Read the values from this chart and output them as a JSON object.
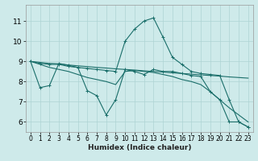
{
  "xlabel": "Humidex (Indice chaleur)",
  "bg_color": "#ceeaea",
  "line_color": "#1a6e6a",
  "grid_color": "#aed4d4",
  "xlim": [
    -0.5,
    23.5
  ],
  "ylim": [
    5.5,
    11.8
  ],
  "xticks": [
    0,
    1,
    2,
    3,
    4,
    5,
    6,
    7,
    8,
    9,
    10,
    11,
    12,
    13,
    14,
    15,
    16,
    17,
    18,
    19,
    20,
    21,
    22,
    23
  ],
  "yticks": [
    6,
    7,
    8,
    9,
    10,
    11
  ],
  "lines": [
    {
      "x": [
        0,
        1,
        2,
        3,
        4,
        5,
        6,
        7,
        8,
        9,
        10,
        11,
        12,
        13,
        14,
        15,
        16,
        17,
        18,
        19,
        20,
        21,
        22,
        23
      ],
      "y": [
        9.0,
        7.7,
        7.8,
        8.9,
        8.8,
        8.7,
        7.55,
        7.3,
        6.35,
        7.1,
        8.6,
        8.5,
        8.35,
        8.6,
        8.5,
        8.5,
        8.4,
        8.3,
        8.25,
        7.5,
        7.1,
        6.0,
        6.0,
        5.75
      ],
      "marker": "+"
    },
    {
      "x": [
        0,
        1,
        2,
        3,
        4,
        5,
        6,
        7,
        8,
        9,
        10,
        11,
        12,
        13,
        14,
        15,
        16,
        17,
        18,
        19,
        20,
        21,
        22,
        23
      ],
      "y": [
        9.0,
        8.9,
        8.85,
        8.85,
        8.75,
        8.7,
        8.65,
        8.6,
        8.55,
        8.5,
        10.0,
        10.6,
        11.0,
        11.15,
        10.2,
        9.2,
        8.85,
        8.5,
        8.4,
        8.35,
        8.3,
        7.1,
        6.0,
        5.75
      ],
      "marker": "+"
    },
    {
      "x": [
        0,
        1,
        2,
        3,
        4,
        5,
        6,
        7,
        8,
        9,
        10,
        11,
        12,
        13,
        14,
        15,
        16,
        17,
        18,
        19,
        20,
        21,
        22,
        23
      ],
      "y": [
        9.0,
        8.95,
        8.9,
        8.88,
        8.82,
        8.78,
        8.74,
        8.7,
        8.67,
        8.63,
        8.6,
        8.57,
        8.53,
        8.5,
        8.47,
        8.43,
        8.4,
        8.37,
        8.33,
        8.3,
        8.27,
        8.23,
        8.2,
        8.17
      ],
      "marker": null
    },
    {
      "x": [
        0,
        1,
        2,
        3,
        4,
        5,
        6,
        7,
        8,
        9,
        10,
        11,
        12,
        13,
        14,
        15,
        16,
        17,
        18,
        19,
        20,
        21,
        22,
        23
      ],
      "y": [
        9.0,
        8.85,
        8.7,
        8.6,
        8.5,
        8.35,
        8.2,
        8.1,
        8.0,
        7.85,
        8.5,
        8.55,
        8.5,
        8.45,
        8.35,
        8.25,
        8.1,
        8.0,
        7.85,
        7.5,
        7.1,
        6.7,
        6.35,
        6.0
      ],
      "marker": null
    }
  ]
}
